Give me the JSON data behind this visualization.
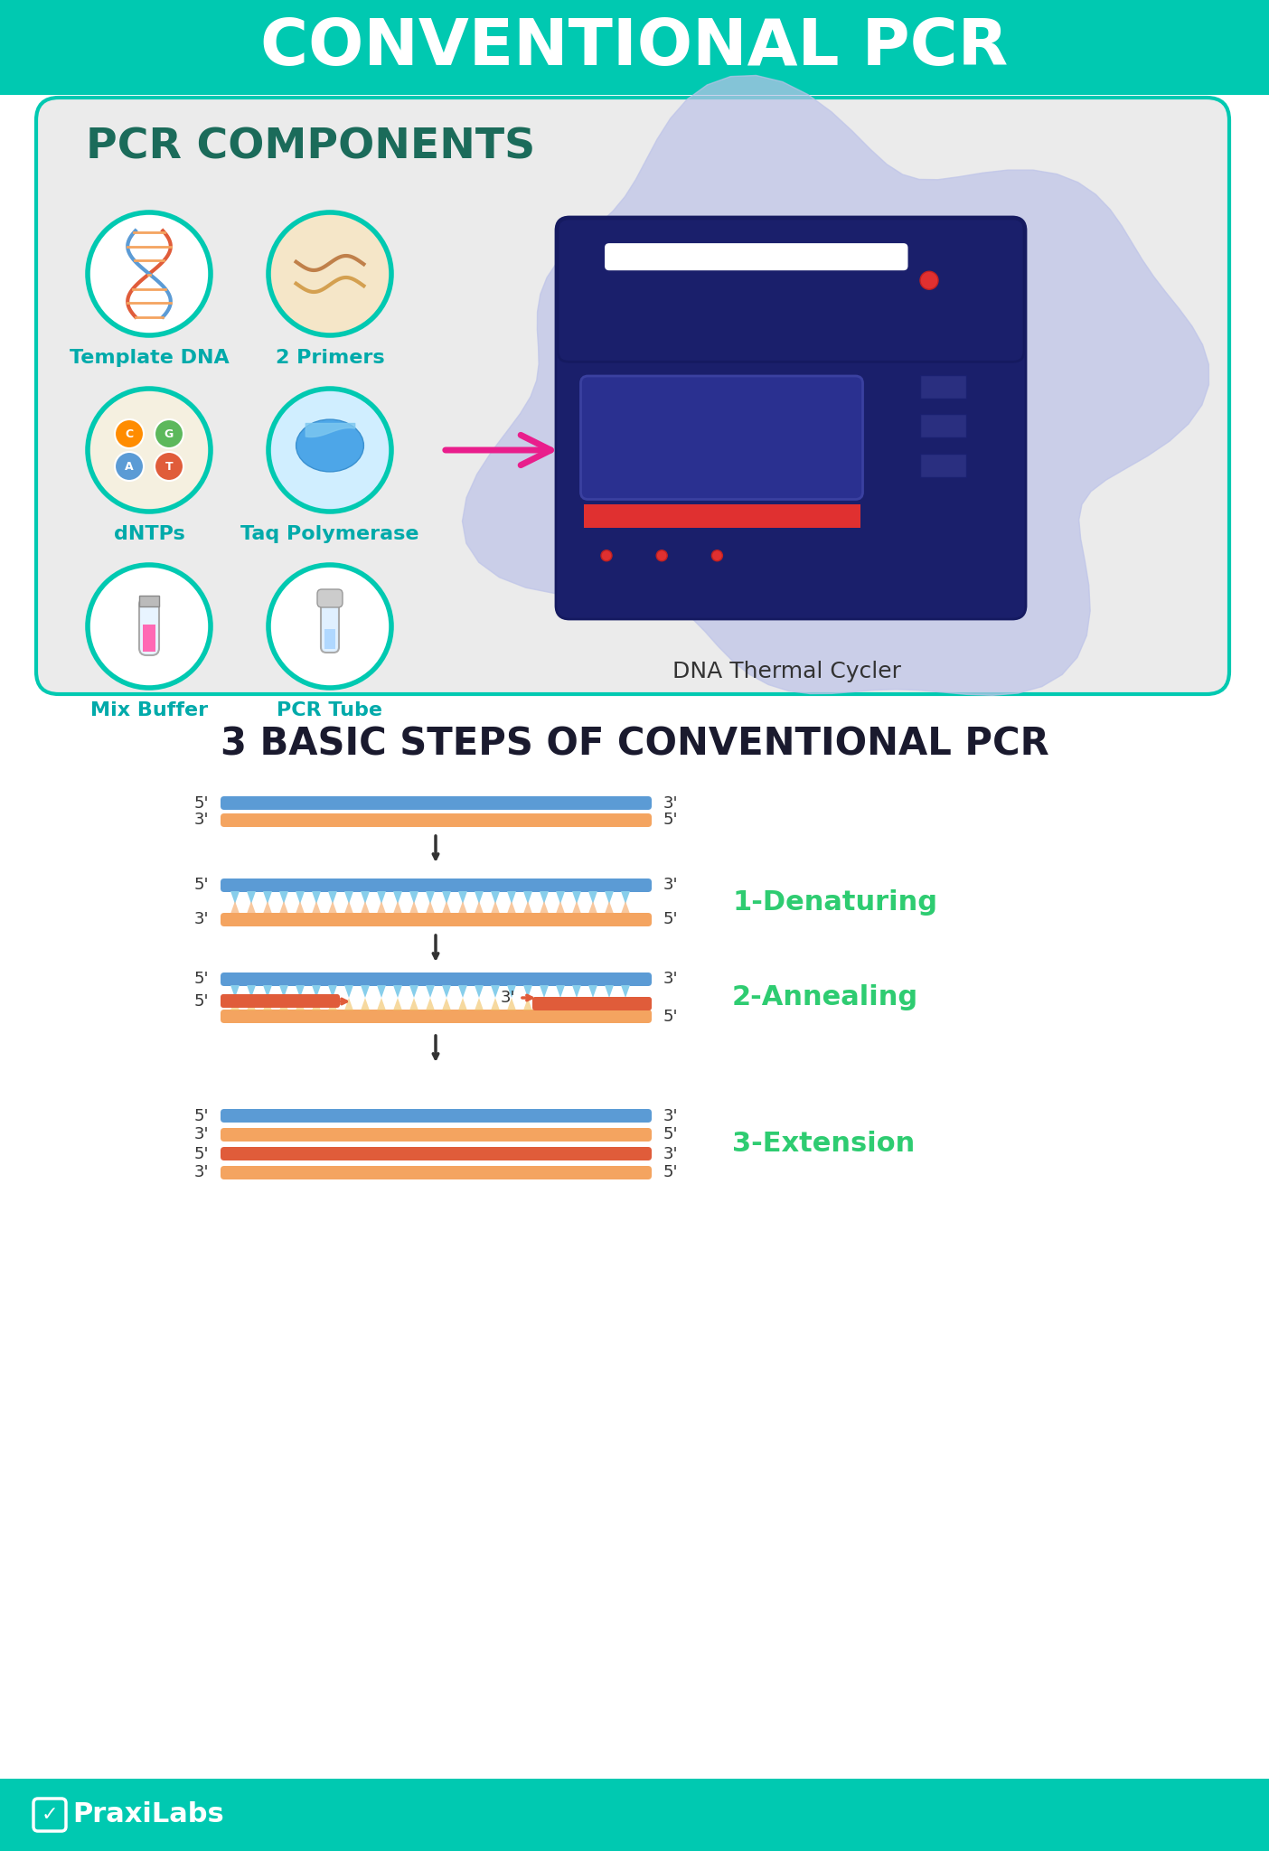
{
  "title": "CONVENTIONAL PCR",
  "title_bg": "#00C9B1",
  "title_color": "#FFFFFF",
  "main_bg": "#FFFFFF",
  "section1_bg": "#E8E8E8",
  "section1_title": "PCR COMPONENTS",
  "section1_title_color": "#1B6B5A",
  "section2_bg": "#FFFFFF",
  "section2_title": "3 BASIC STEPS OF CONVENTIONAL PCR",
  "section2_title_color": "#1A1A2E",
  "components": [
    {
      "label": "Template DNA",
      "color": "#00C9B1"
    },
    {
      "label": "2 Primers",
      "color": "#00C9B1"
    },
    {
      "label": "dNTPs",
      "color": "#00C9B1"
    },
    {
      "label": "Taq Polymerase",
      "color": "#00C9B1"
    },
    {
      "label": "Mix Buffer",
      "color": "#00C9B1"
    },
    {
      "label": "PCR Tube",
      "color": "#00C9B1"
    }
  ],
  "steps": [
    {
      "label": "1-Denaturing",
      "color": "#2ECC71"
    },
    {
      "label": "2-Annealing",
      "color": "#2ECC71"
    },
    {
      "label": "3-Extension",
      "color": "#2ECC71"
    }
  ],
  "arrow_color": "#E91E8C",
  "dna_strand_color1": "#5B9BD5",
  "dna_strand_color2": "#F4A460",
  "dna_teeth_color": "#5B9BD5",
  "primer_color": "#E8735A",
  "footer_bg": "#00C9B1",
  "footer_text": "PraxiLabs",
  "footer_color": "#FFFFFF"
}
